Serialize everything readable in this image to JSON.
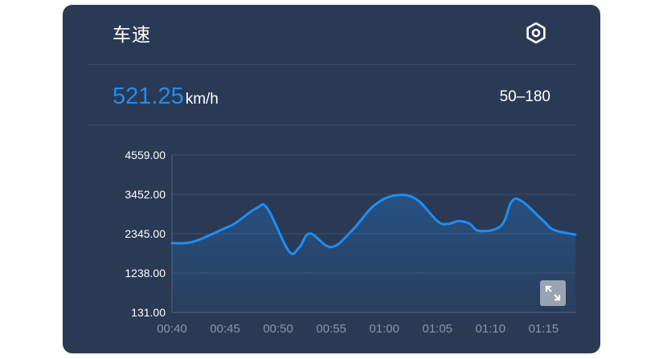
{
  "card": {
    "title": "车速",
    "settings_icon": "settings-hexagon-icon",
    "speed_value": "521.25",
    "speed_unit": "km/h",
    "range": "50–180",
    "expand_icon": "expand-icon"
  },
  "colors": {
    "card_bg": "#2a3a55",
    "accent": "#1e8df5",
    "text": "#ffffff",
    "muted": "#8a96aa"
  },
  "chart_data": {
    "type": "area",
    "title": "",
    "xlabel": "",
    "ylabel": "",
    "x_ticks": [
      "00:40",
      "00:45",
      "00:50",
      "00:55",
      "01:00",
      "01:05",
      "01:10",
      "01:15"
    ],
    "y_ticks": [
      "4559.00",
      "3452.00",
      "2345.00",
      "1238.00",
      "131.00"
    ],
    "ylim": [
      131,
      4559
    ],
    "xlim_minutes": [
      40,
      78
    ],
    "grid": true,
    "series": [
      {
        "x": [
          40,
          42,
          45,
          46,
          48,
          49,
          51,
          52,
          53,
          55,
          57,
          59,
          61,
          63,
          65,
          66,
          67,
          68,
          69,
          71,
          72,
          73,
          75,
          76,
          78
        ],
        "values": [
          2080,
          2120,
          2500,
          2650,
          3070,
          3050,
          1860,
          1960,
          2350,
          1970,
          2450,
          3130,
          3420,
          3320,
          2700,
          2620,
          2700,
          2630,
          2420,
          2570,
          3250,
          3250,
          2700,
          2450,
          2320
        ]
      }
    ]
  }
}
